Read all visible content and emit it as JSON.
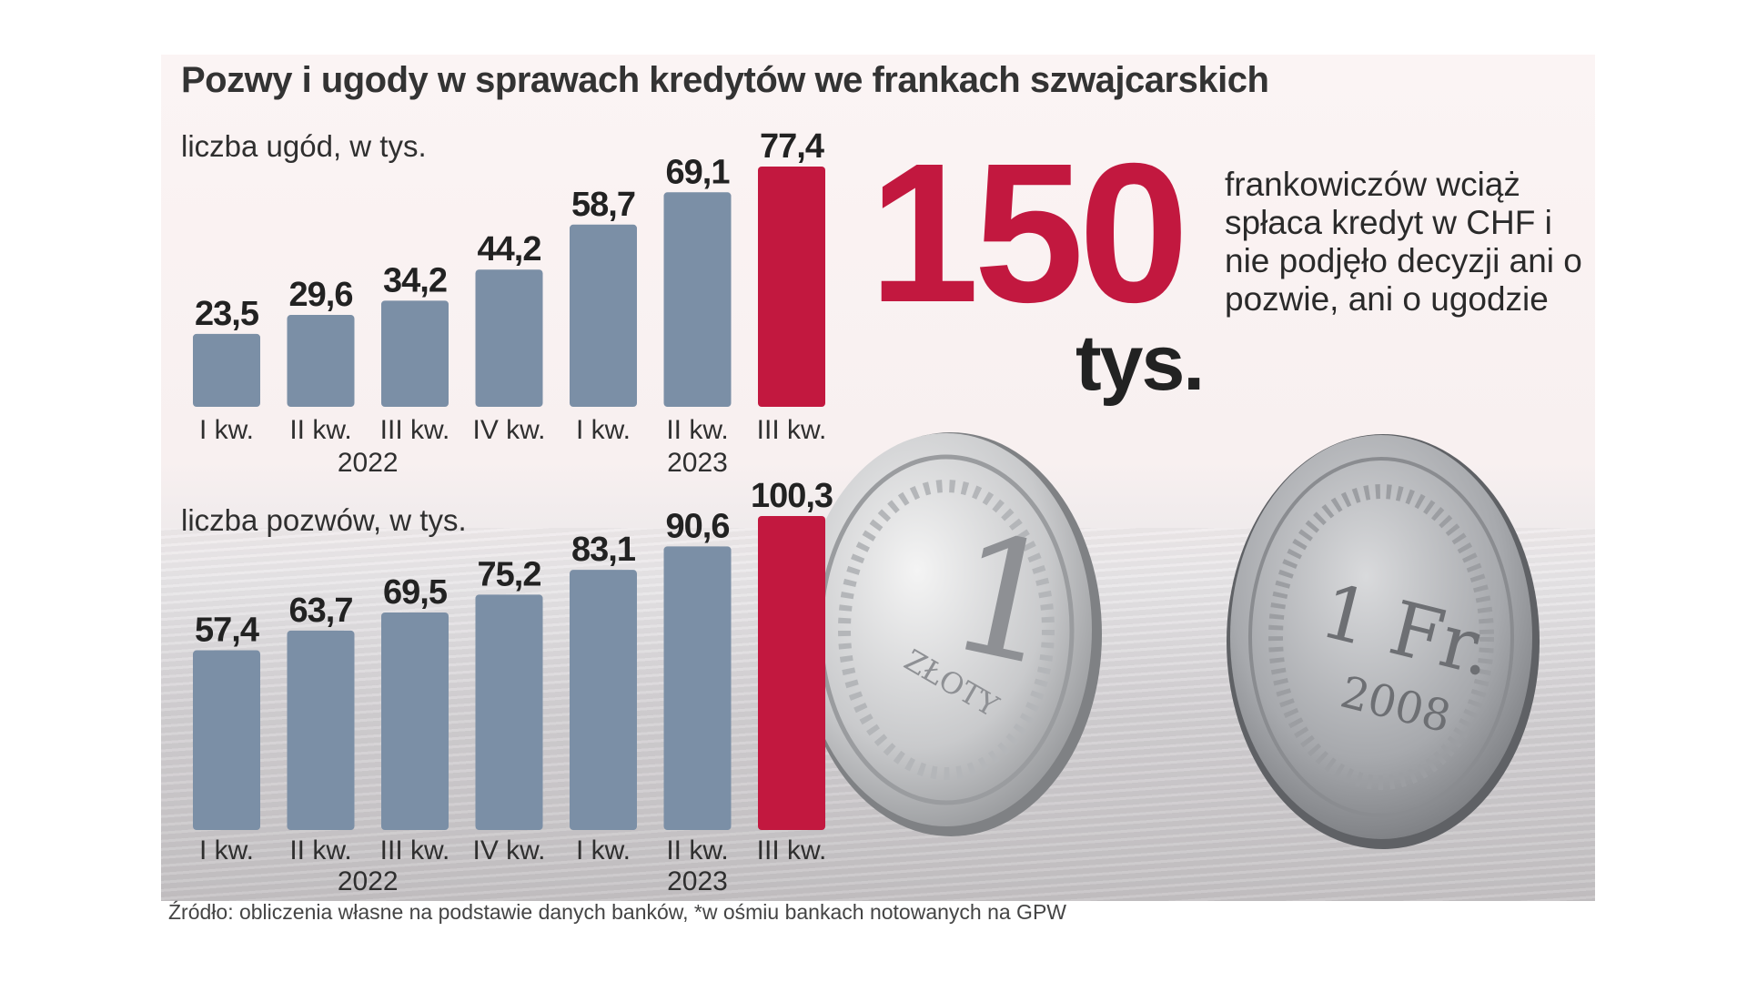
{
  "title": "Pozwy i ugody  w sprawach kredytów we frankach szwajcarskich",
  "headline": {
    "number": "150",
    "unit": "tys.",
    "text": "frankowiczów wciąż spłaca kredyt w CHF i nie podjęło decyzji ani o pozwie, ani o ugodzie"
  },
  "source": "Źródło: obliczenia własne na podstawie danych banków, *w ośmiu bankach notowanych na GPW",
  "coins": {
    "coin1_value": "1",
    "coin1_text": "ZŁOTY",
    "coin2_value": "1 Fr.",
    "coin2_year": "2008"
  },
  "colors": {
    "bar": "#7b8fa6",
    "highlight": "#c2183f"
  },
  "chart_data": [
    {
      "type": "bar",
      "title": "liczba ugód, w tys.",
      "categories": [
        "I kw.",
        "II kw.",
        "III kw.",
        "IV kw.",
        "I kw.",
        "II kw.",
        "III kw."
      ],
      "years": [
        {
          "label": "2022",
          "from": 0,
          "to": 3
        },
        {
          "label": "2023",
          "from": 4,
          "to": 6
        }
      ],
      "values": [
        23.5,
        29.6,
        34.2,
        44.2,
        58.7,
        69.1,
        77.4
      ],
      "value_labels": [
        "23,5",
        "29,6",
        "34,2",
        "44,2",
        "58,7",
        "69,1",
        "77,4"
      ],
      "highlight_index": 6
    },
    {
      "type": "bar",
      "title": "liczba pozwów, w tys.",
      "categories": [
        "I kw.",
        "II kw.",
        "III kw.",
        "IV kw.",
        "I kw.",
        "II kw.",
        "III kw."
      ],
      "years": [
        {
          "label": "2022",
          "from": 0,
          "to": 3
        },
        {
          "label": "2023",
          "from": 4,
          "to": 6
        }
      ],
      "values": [
        57.4,
        63.7,
        69.5,
        75.2,
        83.1,
        90.6,
        100.3
      ],
      "value_labels": [
        "57,4",
        "63,7",
        "69,5",
        "75,2",
        "83,1",
        "90,6",
        "100,3"
      ],
      "highlight_index": 6
    }
  ]
}
